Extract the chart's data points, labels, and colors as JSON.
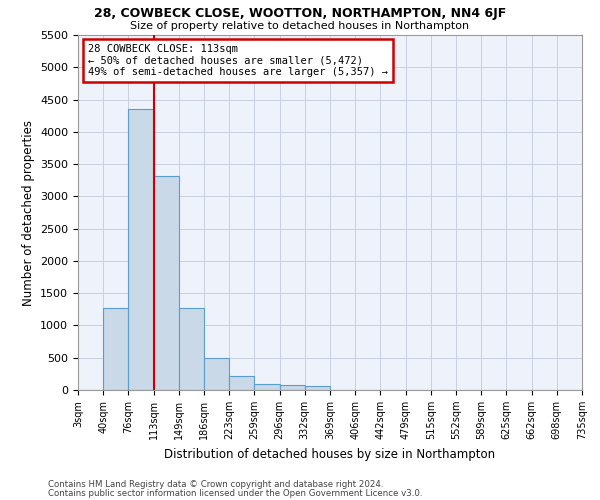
{
  "title1": "28, COWBECK CLOSE, WOOTTON, NORTHAMPTON, NN4 6JF",
  "title2": "Size of property relative to detached houses in Northampton",
  "xlabel": "Distribution of detached houses by size in Northampton",
  "ylabel": "Number of detached properties",
  "bin_labels": [
    "3sqm",
    "40sqm",
    "76sqm",
    "113sqm",
    "149sqm",
    "186sqm",
    "223sqm",
    "259sqm",
    "296sqm",
    "332sqm",
    "369sqm",
    "406sqm",
    "442sqm",
    "479sqm",
    "515sqm",
    "552sqm",
    "589sqm",
    "625sqm",
    "662sqm",
    "698sqm",
    "735sqm"
  ],
  "bar_heights": [
    0,
    1270,
    4360,
    3320,
    1270,
    490,
    215,
    90,
    75,
    55,
    0,
    0,
    0,
    0,
    0,
    0,
    0,
    0,
    0,
    0
  ],
  "bar_color": "#c9d9e8",
  "bar_edge_color": "#5a9ec9",
  "vline_position": 3,
  "marker_label": "28 COWBECK CLOSE: 113sqm",
  "annotation_line1": "← 50% of detached houses are smaller (5,472)",
  "annotation_line2": "49% of semi-detached houses are larger (5,357) →",
  "vline_color": "#cc0000",
  "annotation_box_color": "#cc0000",
  "ylim": [
    0,
    5500
  ],
  "yticks": [
    0,
    500,
    1000,
    1500,
    2000,
    2500,
    3000,
    3500,
    4000,
    4500,
    5000,
    5500
  ],
  "footnote1": "Contains HM Land Registry data © Crown copyright and database right 2024.",
  "footnote2": "Contains public sector information licensed under the Open Government Licence v3.0.",
  "background_color": "#eef2fa",
  "grid_color": "#c8d0e0"
}
